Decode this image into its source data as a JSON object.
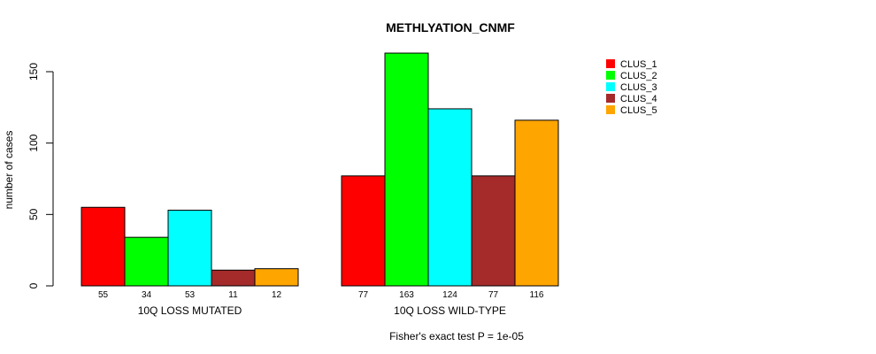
{
  "chart_data": {
    "type": "bar",
    "title": "METHLYATION_CNMF",
    "ylabel": "number of cases",
    "xlabel": "",
    "footnote": "Fisher's exact test P = 1e-05",
    "ylim": [
      0,
      150
    ],
    "yticks": [
      0,
      50,
      100,
      150
    ],
    "grid": false,
    "legend_position": "top-right",
    "groups": [
      {
        "label": "10Q LOSS MUTATED",
        "values": [
          55,
          34,
          53,
          11,
          12
        ]
      },
      {
        "label": "10Q LOSS WILD-TYPE",
        "values": [
          77,
          163,
          124,
          77,
          116
        ]
      }
    ],
    "series": [
      {
        "name": "CLUS_1",
        "color": "#ff0000"
      },
      {
        "name": "CLUS_2",
        "color": "#00ff00"
      },
      {
        "name": "CLUS_3",
        "color": "#00ffff"
      },
      {
        "name": "CLUS_4",
        "color": "#a52a2a"
      },
      {
        "name": "CLUS_5",
        "color": "#ffa500"
      }
    ]
  }
}
